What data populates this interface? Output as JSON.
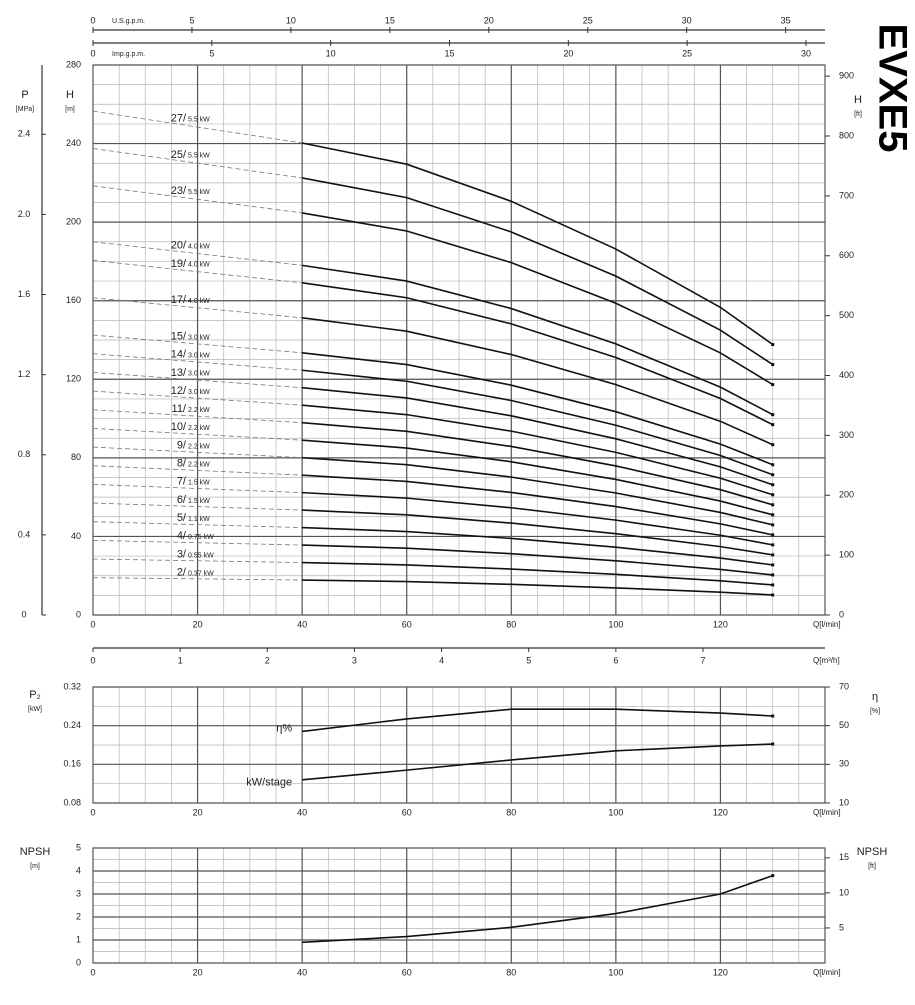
{
  "chart_data": [
    {
      "type": "line",
      "title": "EVXE5",
      "x": [
        0,
        40,
        60,
        80,
        100,
        120,
        130
      ],
      "dashed_below": 40,
      "xlim": [
        0,
        140
      ],
      "xticks": [
        0,
        20,
        40,
        60,
        80,
        100,
        120
      ],
      "xlabel": "Q[l/min]",
      "xminor": 5,
      "ylim": [
        0,
        280
      ],
      "yticks": [
        0,
        40,
        80,
        120,
        160,
        200,
        240,
        280
      ],
      "ylabel": "H",
      "yunit": "[m]",
      "yminor": 10,
      "y2lim": [
        0,
        918.6
      ],
      "y2ticks": [
        0,
        100,
        200,
        300,
        400,
        500,
        600,
        700,
        800,
        900
      ],
      "y2label": "H",
      "y2unit": "[ft]",
      "left_axis": {
        "label": "P",
        "unit": "[MPa]",
        "lim": [
          0,
          2.746
        ],
        "ticks": [
          0,
          0.4,
          0.8,
          1.2,
          1.6,
          {
            "value": 2,
            "label": "2.0"
          },
          2.4
        ]
      },
      "top_axes": [
        {
          "label": "U.S.g.p.m.",
          "lim": [
            0,
            36.99
          ],
          "ticks": [
            0,
            5,
            10,
            15,
            20,
            25,
            30,
            35
          ]
        },
        {
          "label": "Imp.g.p.m.",
          "lim": [
            0,
            30.8
          ],
          "ticks": [
            0,
            5,
            10,
            15,
            20,
            25,
            30
          ]
        }
      ],
      "bottom_axis": {
        "label": "Q[m³/h]",
        "lim": [
          0,
          8.4
        ],
        "ticks": [
          0,
          1,
          2,
          3,
          4,
          5,
          6,
          7
        ]
      },
      "grid": true,
      "color": "#111",
      "series": [
        {
          "name": "27/",
          "power": "5.5 kW",
          "values": [
            256.5,
            240.3,
            229.5,
            210.6,
            186.3,
            156.6,
            137.7
          ]
        },
        {
          "name": "25/",
          "power": "5.5 kW",
          "values": [
            237.5,
            222.5,
            212.5,
            195,
            172.5,
            145,
            127.5
          ]
        },
        {
          "name": "23/",
          "power": "5.5 kW",
          "values": [
            218.5,
            204.7,
            195.5,
            179.4,
            158.7,
            133.4,
            117.3
          ]
        },
        {
          "name": "20/",
          "power": "4.0 kW",
          "values": [
            190,
            178,
            170,
            156,
            138,
            116,
            102
          ]
        },
        {
          "name": "19/",
          "power": "4.0 kW",
          "values": [
            180.5,
            169.1,
            161.5,
            148.2,
            131.1,
            110.2,
            96.9
          ]
        },
        {
          "name": "17/",
          "power": "4.0 kW",
          "values": [
            161.5,
            151.3,
            144.5,
            132.6,
            117.3,
            98.6,
            86.7
          ]
        },
        {
          "name": "15/",
          "power": "3.0 kW",
          "values": [
            142.5,
            133.5,
            127.5,
            117,
            103.5,
            87,
            76.5
          ]
        },
        {
          "name": "14/",
          "power": "3.0 kW",
          "values": [
            133,
            124.6,
            119,
            109.2,
            96.6,
            81.2,
            71.4
          ]
        },
        {
          "name": "13/",
          "power": "3.0 kW",
          "values": [
            123.5,
            115.7,
            110.5,
            101.4,
            89.7,
            75.4,
            66.3
          ]
        },
        {
          "name": "12/",
          "power": "3.0 kW",
          "values": [
            114,
            106.8,
            102,
            93.6,
            82.8,
            69.6,
            61.2
          ]
        },
        {
          "name": "11/",
          "power": "2.2 kW",
          "values": [
            104.5,
            97.9,
            93.5,
            85.8,
            75.9,
            63.8,
            56.1
          ]
        },
        {
          "name": "10/",
          "power": "2.2 kW",
          "values": [
            95,
            89,
            85,
            78,
            69,
            58,
            51
          ]
        },
        {
          "name": "9/",
          "power": "2.2 kW",
          "values": [
            85.5,
            80.1,
            76.5,
            70.2,
            62.1,
            52.2,
            45.9
          ]
        },
        {
          "name": "8/",
          "power": "2.2 kW",
          "values": [
            76,
            71.2,
            68,
            62.4,
            55.2,
            46.4,
            40.8
          ]
        },
        {
          "name": "7/",
          "power": "1.5 kW",
          "values": [
            66.5,
            62.3,
            59.5,
            54.6,
            48.3,
            40.6,
            35.7
          ]
        },
        {
          "name": "6/",
          "power": "1.5 kW",
          "values": [
            57,
            53.4,
            51,
            46.8,
            41.4,
            34.8,
            30.6
          ]
        },
        {
          "name": "5/",
          "power": "1.1 kW",
          "values": [
            47.5,
            44.5,
            42.5,
            39,
            34.5,
            29,
            25.5
          ]
        },
        {
          "name": "4/",
          "power": "0.75 kW",
          "values": [
            38,
            35.6,
            34,
            31.2,
            27.6,
            23.2,
            20.4
          ]
        },
        {
          "name": "3/",
          "power": "0.55 kW",
          "values": [
            28.5,
            26.7,
            25.5,
            23.4,
            20.7,
            17.4,
            15.3
          ]
        },
        {
          "name": "2/",
          "power": "0.37 kW",
          "values": [
            19,
            17.8,
            17,
            15.6,
            13.8,
            11.6,
            10.2
          ]
        }
      ]
    },
    {
      "type": "line",
      "x": [
        40,
        60,
        80,
        100,
        120,
        130
      ],
      "xlim": [
        0,
        140
      ],
      "xticks": [
        0,
        20,
        40,
        60,
        80,
        100,
        120
      ],
      "xlabel": "Q[l/min]",
      "xminor": 5,
      "ylim": [
        0.08,
        0.32
      ],
      "yticks": [
        0.08,
        0.16,
        0.24,
        0.32
      ],
      "ylabel": "P₂",
      "yunit": "[kW]",
      "yminor": 0.04,
      "y2lim": [
        10,
        70
      ],
      "y2ticks": [
        10,
        30,
        50,
        70
      ],
      "y2label": "η",
      "y2unit": "[%]",
      "grid": true,
      "color": "#111",
      "series": [
        {
          "name": "kW/stage",
          "values": [
            0.128,
            0.148,
            0.169,
            0.188,
            0.198,
            0.202
          ]
        },
        {
          "name": "η%",
          "axis": "y2",
          "values": [
            47,
            53.5,
            58.5,
            58.5,
            56.5,
            55
          ]
        }
      ]
    },
    {
      "type": "line",
      "x": [
        40,
        60,
        80,
        100,
        120,
        130
      ],
      "xlim": [
        0,
        140
      ],
      "xticks": [
        0,
        20,
        40,
        60,
        80,
        100,
        120
      ],
      "xlabel": "Q[l/min]",
      "xminor": 5,
      "ylim": [
        0,
        5
      ],
      "yticks": [
        0,
        1,
        2,
        3,
        4,
        5
      ],
      "ylabel": "NPSH",
      "yunit": "[m]",
      "yminor": 0.5,
      "y2lim": [
        0,
        16.4
      ],
      "y2ticks": [
        5,
        10,
        15
      ],
      "y2label": "NPSH",
      "y2unit": "[ft]",
      "grid": true,
      "color": "#111",
      "values": [
        0.9,
        1.15,
        1.55,
        2.15,
        3.0,
        3.8
      ]
    }
  ]
}
